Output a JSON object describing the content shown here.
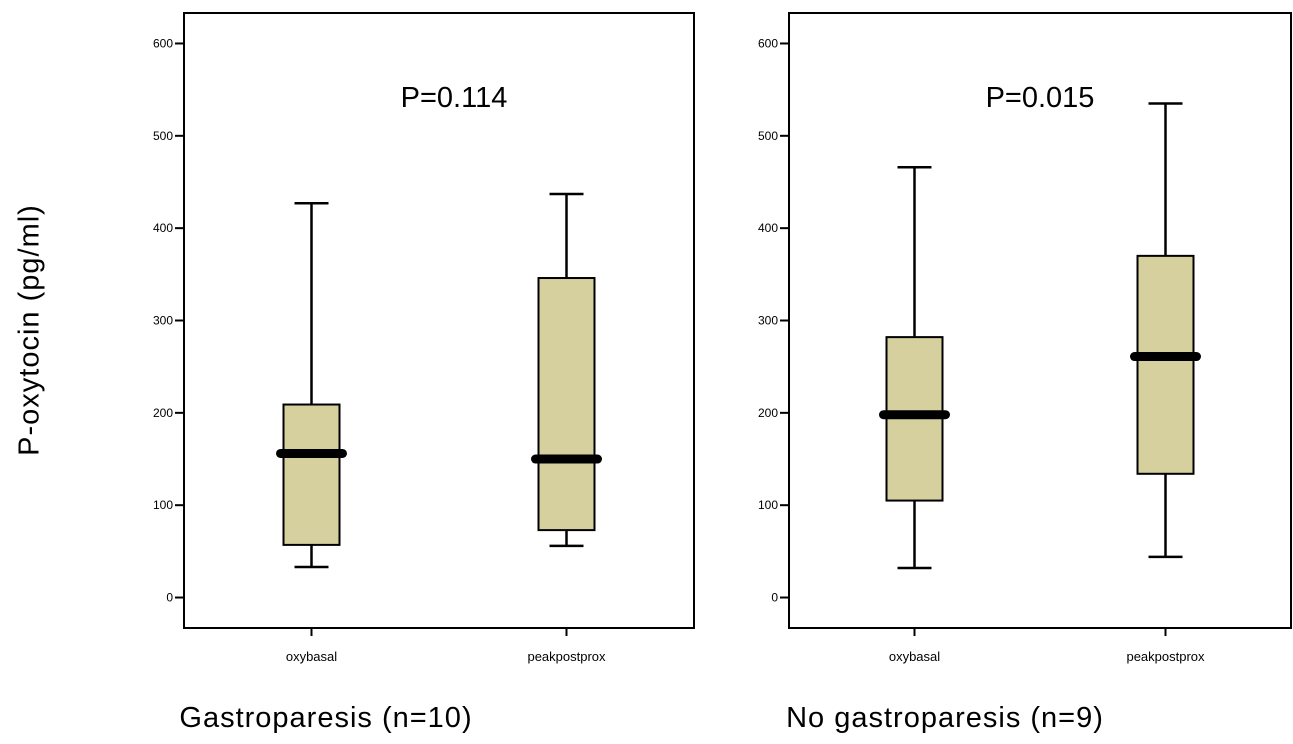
{
  "y_axis_label": "P-oxytocin (pg/ml)",
  "chart_data": [
    {
      "type": "box",
      "caption": "Gastroparesis (n=10)",
      "annotation": "P=0.114",
      "categories": [
        "oxybasal",
        "peakpostprox"
      ],
      "boxes": [
        {
          "category": "oxybasal",
          "min": 33,
          "q1": 57,
          "median": 156,
          "q3": 209,
          "max": 427
        },
        {
          "category": "peakpostprox",
          "min": 56,
          "q1": 73,
          "median": 150,
          "q3": 346,
          "max": 437
        }
      ],
      "ylim": [
        -33,
        633
      ],
      "yticks": [
        0,
        100,
        200,
        300,
        400,
        500,
        600
      ],
      "grid": false,
      "box_color": "#d6d09e"
    },
    {
      "type": "box",
      "caption": "No gastroparesis (n=9)",
      "annotation": "P=0.015",
      "categories": [
        "oxybasal",
        "peakpostprox"
      ],
      "boxes": [
        {
          "category": "oxybasal",
          "min": 32,
          "q1": 105,
          "median": 198,
          "q3": 282,
          "max": 466
        },
        {
          "category": "peakpostprox",
          "min": 44,
          "q1": 134,
          "median": 261,
          "q3": 370,
          "max": 535
        }
      ],
      "ylim": [
        -33,
        633
      ],
      "yticks": [
        0,
        100,
        200,
        300,
        400,
        500,
        600
      ],
      "grid": false,
      "box_color": "#d6d09e"
    }
  ]
}
